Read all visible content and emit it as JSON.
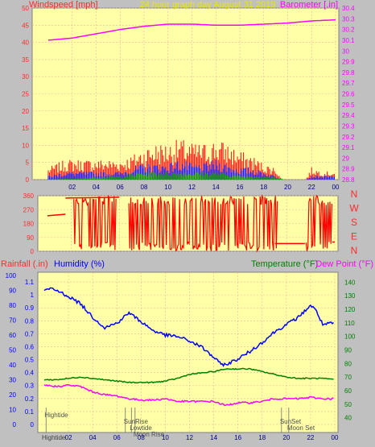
{
  "header": {
    "left_label": "Windspeed [mph]",
    "title": "24 hour graph day August 31 2019",
    "right_label": "Barometer [.in]"
  },
  "colors": {
    "plot_bg": "#ffffa8",
    "outer_bg": "#c0c0c0",
    "grid": "#e6b89a",
    "wind_axis": "#ff2a2a",
    "baro_axis": "#ff00ff",
    "title": "#e8e800",
    "rain_axis": "#ff2a2a",
    "humidity": "#0000ff",
    "temperature": "#008000",
    "dewpoint": "#ff00ff"
  },
  "chart_data": [
    {
      "type": "bar",
      "name_key": "wind",
      "x_ticks": [
        "02",
        "04",
        "06",
        "08",
        "10",
        "12",
        "14",
        "16",
        "18",
        "20",
        "22",
        "00"
      ],
      "y_left_ticks": [
        "0",
        "5",
        "10",
        "15",
        "20",
        "25",
        "30",
        "35",
        "40",
        "45",
        "50"
      ],
      "y_left_range": [
        0,
        50
      ],
      "y_right_ticks": [
        "28.8",
        "28.9",
        "29",
        "29.1",
        "29.2",
        "29.3",
        "29.4",
        "29.5",
        "29.6",
        "29.7",
        "29.8",
        "29.9",
        "30",
        "30.1",
        "30.2",
        "30.3",
        "30.4"
      ],
      "y_right_range": [
        28.8,
        30.4
      ],
      "barometer": {
        "x": [
          0,
          2,
          4,
          6,
          8,
          10,
          12,
          14,
          16,
          18,
          20,
          22,
          24
        ],
        "y": [
          30.1,
          30.12,
          30.16,
          30.2,
          30.23,
          30.25,
          30.25,
          30.24,
          30.24,
          30.25,
          30.26,
          30.28,
          30.29
        ]
      },
      "wind_gust": {
        "x": [
          0,
          1.5,
          6,
          7,
          8,
          9,
          10,
          11,
          12,
          13,
          14,
          15,
          16,
          17,
          18,
          19,
          19.5,
          21.5,
          22,
          23,
          24
        ],
        "y": [
          3,
          5,
          5,
          6,
          8,
          9,
          9,
          10,
          9,
          9,
          10,
          9,
          7,
          6,
          4,
          3,
          0,
          0,
          3,
          2,
          2
        ]
      },
      "wind_avg": {
        "x": [
          0,
          1.5,
          6,
          7,
          8,
          9,
          10,
          11,
          12,
          13,
          14,
          15,
          16,
          17,
          18,
          19,
          19.5,
          21.5,
          22,
          23,
          24
        ],
        "y": [
          1,
          2,
          2,
          3,
          4,
          4,
          4,
          5,
          4,
          4,
          5,
          4,
          3,
          3,
          2,
          1,
          0,
          0,
          1,
          1,
          1
        ]
      },
      "wind_min": {
        "x": [
          0,
          6,
          8,
          10,
          12,
          14,
          16,
          18,
          20,
          24
        ],
        "y": [
          0,
          1,
          2,
          2,
          2,
          2,
          1,
          1,
          0,
          0
        ]
      }
    },
    {
      "type": "line",
      "name_key": "direction",
      "y_left_ticks": [
        "0",
        "90",
        "180",
        "270",
        "360"
      ],
      "y_left_range": [
        0,
        360
      ],
      "compass_labels": [
        "N",
        "W",
        "S",
        "E",
        "N"
      ],
      "segments": [
        {
          "x": [
            0,
            1.5
          ],
          "y": [
            230,
            240
          ]
        },
        {
          "x": [
            1.5,
            6
          ],
          "y": [
            345,
            350
          ]
        },
        {
          "x": [
            19,
            21.5
          ],
          "y": [
            50,
            50
          ]
        },
        {
          "x": [
            23.8,
            24
          ],
          "y": [
            60,
            60
          ]
        }
      ],
      "noisy_ranges": [
        [
          2.2,
          5.8
        ],
        [
          6.8,
          19.2
        ],
        [
          21.6,
          23.8
        ]
      ]
    },
    {
      "type": "line",
      "name_key": "climate",
      "labels": {
        "rainfall": "Rainfall (.in)",
        "humidity": "Humidity (%)",
        "temperature": "Temperature (°F)",
        "dewpoint": "Dew Point (°F)"
      },
      "x_ticks": [
        "02",
        "04",
        "06",
        "08",
        "10",
        "12",
        "14",
        "16",
        "18",
        "20",
        "22",
        "00"
      ],
      "rain_ticks": [
        "0",
        "0.1",
        "0.2",
        "0.3",
        "0.4",
        "0.5",
        "0.6",
        "0.7",
        "0.8",
        "0.9",
        "1",
        "1.1"
      ],
      "rain_range": [
        0,
        1.15
      ],
      "humidity_ticks": [
        "0",
        "10",
        "20",
        "30",
        "40",
        "50",
        "60",
        "70",
        "80",
        "90",
        "100"
      ],
      "humidity_range": [
        0,
        100
      ],
      "temp_ticks": [
        "40",
        "50",
        "60",
        "70",
        "80",
        "90",
        "100",
        "110",
        "120",
        "130",
        "140"
      ],
      "temp_range": [
        35,
        145
      ],
      "humidity": {
        "x": [
          0,
          0.5,
          1,
          2,
          3,
          4,
          5,
          6,
          7,
          8,
          9,
          10,
          11,
          12,
          13,
          14,
          14.5,
          15,
          16,
          17,
          18,
          19,
          20,
          21,
          22,
          22.5,
          23,
          24
        ],
        "y": [
          90,
          91,
          90,
          86,
          81,
          72,
          65,
          68,
          75,
          69,
          63,
          60,
          59,
          56,
          52,
          45,
          41,
          40,
          44,
          49,
          55,
          62,
          67,
          72,
          80,
          76,
          67,
          68
        ]
      },
      "temperature": {
        "x": [
          0,
          1,
          2,
          3,
          4,
          5,
          6,
          7,
          8,
          9,
          10,
          11,
          12,
          13,
          14,
          15,
          16,
          17,
          18,
          19,
          20,
          21,
          22,
          23,
          24
        ],
        "y": [
          68,
          68,
          69,
          70,
          69,
          68,
          67,
          66,
          66,
          66,
          67,
          69,
          72,
          73,
          74,
          76,
          76,
          76,
          74,
          72,
          70,
          69,
          69,
          69,
          68
        ]
      },
      "dewpoint": {
        "x": [
          0,
          1,
          2,
          3,
          4,
          5,
          6,
          7,
          8,
          9,
          10,
          11,
          12,
          13,
          14,
          15,
          16,
          17,
          18,
          19,
          20,
          21,
          22,
          23,
          24
        ],
        "y": [
          64,
          63,
          64,
          63,
          59,
          57,
          56,
          54,
          53,
          53,
          54,
          52,
          52,
          52,
          52,
          49,
          51,
          51,
          52,
          54,
          54,
          54,
          55,
          54,
          54
        ]
      },
      "events": [
        {
          "label": "Hightide",
          "x": 0.15,
          "row": 1
        },
        {
          "label": "SunRise",
          "x": 6.7,
          "row": 2
        },
        {
          "label": "Lowtide",
          "x": 7.2,
          "row": 3
        },
        {
          "label": "Moon Rise",
          "x": 7.5,
          "row": 4
        },
        {
          "label": "SunSet",
          "x": 19.6,
          "row": 2
        },
        {
          "label": "Moon Set",
          "x": 20.2,
          "row": 3
        }
      ],
      "bottom_event_label": "Hightide"
    }
  ]
}
